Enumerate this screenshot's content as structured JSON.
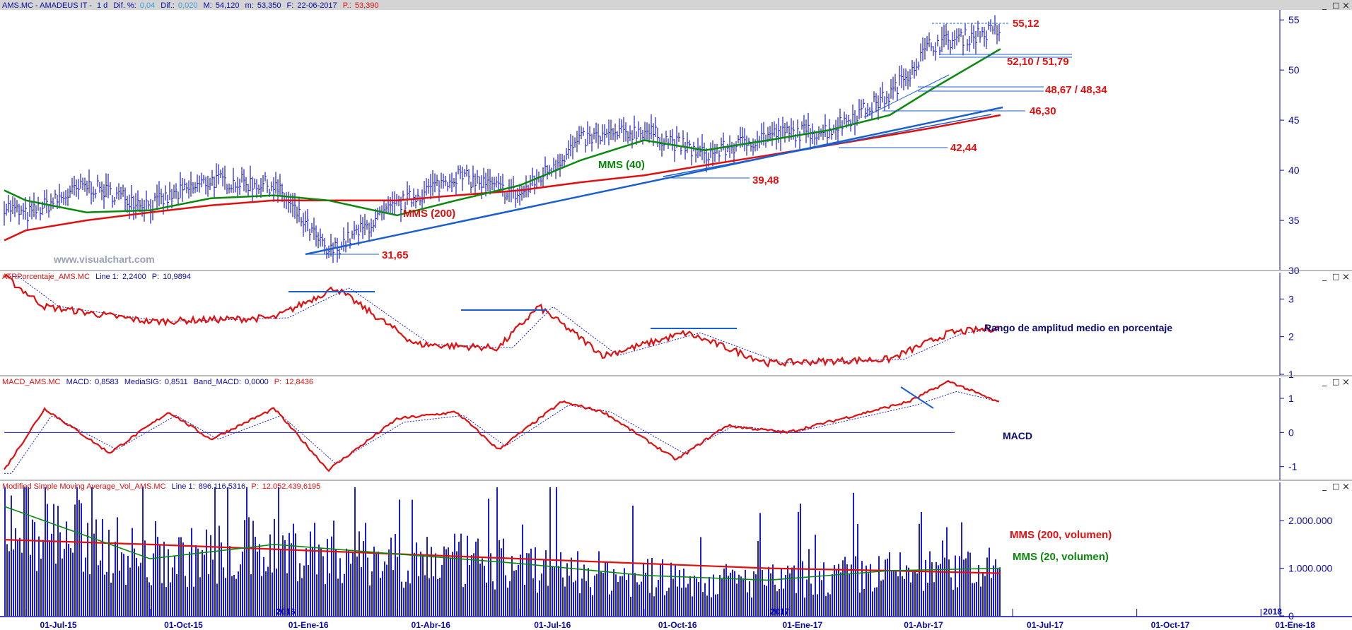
{
  "price_panel": {
    "header": {
      "symbol": "AMS.MC - AMADEUS IT -",
      "interval": "1 d",
      "dif_pct_label": "Dif. %:",
      "dif_pct": "0,04",
      "dif_label": "Dif.:",
      "dif": "0,020",
      "max_label": "M:",
      "max": "54,120",
      "min_label": "m:",
      "min": "53,350",
      "date_label": "F:",
      "date": "22-06-2017",
      "price_label": "P.:",
      "price": "53,390"
    },
    "watermark": "www.visualchart.com",
    "labels": {
      "mms40": "MMS (40)",
      "mms200": "MMS (200)"
    },
    "levels": [
      {
        "value": 55.12,
        "text": "55,12"
      },
      {
        "value": 52.1,
        "text": "52,10 / 51,79"
      },
      {
        "value": 48.67,
        "text": "48,67 / 48,34"
      },
      {
        "value": 46.3,
        "text": "46,30"
      },
      {
        "value": 42.44,
        "text": "42,44"
      },
      {
        "value": 39.48,
        "text": "39,48"
      },
      {
        "value": 31.65,
        "text": "31,65"
      }
    ],
    "yticks": [
      "55",
      "50",
      "45",
      "40",
      "35",
      "30"
    ]
  },
  "atr_panel": {
    "header": {
      "name": "ATRPorcentaje_AMS.MC",
      "line_label": "Line 1:",
      "line": "2,2400",
      "p_label": "P:",
      "p": "10,9894"
    },
    "description": "Rango de amplitud medio en porcentaje",
    "yticks": [
      "3",
      "2",
      "1"
    ]
  },
  "macd_panel": {
    "header": {
      "name": "MACD_AMS.MC",
      "macd_label": "MACD:",
      "macd": "0,8583",
      "sig_label": "MediaSIG:",
      "sig": "0,8511",
      "band_label": "Band_MACD:",
      "band": "0,0000",
      "p_label": "P:",
      "p": "12,8436"
    },
    "description": "MACD",
    "yticks": [
      "1",
      "0",
      "-1"
    ]
  },
  "volume_panel": {
    "header": {
      "name": "Modified Simple Moving Average_Vol_AMS.MC",
      "line_label": "Line 1:",
      "line": "896.116,5316",
      "p_label": "P:",
      "p": "12.052.439,6195"
    },
    "label_200": "MMS (200, volumen)",
    "label_20": "MMS (20, volumen)",
    "yticks": [
      "2.000.000",
      "1.000.000",
      "0"
    ]
  },
  "x_axis": {
    "dates": [
      "01-Jul-15",
      "01-Oct-15",
      "01-Ene-16",
      "01-Abr-16",
      "01-Jul-16",
      "01-Oct-16",
      "01-Ene-17",
      "01-Abr-17",
      "01-Jul-17",
      "01-Oct-17",
      "01-Ene-18"
    ],
    "year_markers": [
      "2016",
      "2017",
      "2018"
    ]
  },
  "window_controls": {
    "minimize": "_",
    "restore": "□",
    "close": "×"
  },
  "colors": {
    "price_bars": "#1c1cd6",
    "mms40": "#0a8a0a",
    "mms200": "#e01010",
    "trendline": "#1a5fd0",
    "annotation": "#e01010",
    "axis": "#0a0aa8",
    "header_bg": "#d4d4d4"
  },
  "chart_data": [
    {
      "type": "bar",
      "title": "AMS.MC - AMADEUS IT",
      "x": [
        "2015-06-15",
        "2015-07-01",
        "2015-08-15",
        "2015-10-01",
        "2015-11-15",
        "2016-01-01",
        "2016-02-10",
        "2016-04-01",
        "2016-05-15",
        "2016-07-01",
        "2016-08-15",
        "2016-10-01",
        "2016-11-15",
        "2017-01-01",
        "2017-02-15",
        "2017-04-01",
        "2017-05-01",
        "2017-06-22"
      ],
      "series": [
        {
          "name": "price",
          "values": [
            36.5,
            35.5,
            38.5,
            36.5,
            39.0,
            38.5,
            31.7,
            36.5,
            39.5,
            37.5,
            43.0,
            44.0,
            41.5,
            43.5,
            44.0,
            47.5,
            52.5,
            54.0
          ]
        },
        {
          "name": "MMS (40)",
          "values": [
            38.0,
            37.0,
            35.8,
            36.0,
            37.2,
            37.5,
            37.0,
            35.5,
            37.0,
            38.5,
            41.0,
            43.0,
            42.0,
            43.0,
            44.0,
            45.5,
            48.0,
            52.1
          ]
        },
        {
          "name": "MMS (200)",
          "values": [
            33.0,
            34.0,
            35.0,
            35.8,
            36.5,
            37.0,
            37.0,
            37.0,
            37.5,
            38.0,
            38.8,
            39.5,
            40.5,
            41.5,
            42.5,
            43.5,
            44.2,
            45.5
          ]
        }
      ],
      "ylim": [
        30,
        56
      ]
    },
    {
      "type": "line",
      "title": "ATRPorcentaje_AMS.MC",
      "x": [
        "2015-06-15",
        "2015-07-15",
        "2015-10-01",
        "2016-01-01",
        "2016-02-15",
        "2016-04-15",
        "2016-06-15",
        "2016-07-15",
        "2016-09-01",
        "2016-11-01",
        "2017-01-01",
        "2017-04-01",
        "2017-05-15",
        "2017-06-22"
      ],
      "series": [
        {
          "name": "Line 1",
          "values": [
            3.6,
            2.8,
            2.4,
            2.5,
            3.3,
            1.8,
            1.7,
            2.8,
            1.5,
            2.1,
            1.3,
            1.4,
            2.1,
            2.24
          ]
        }
      ],
      "ylim": [
        1,
        3.7
      ]
    },
    {
      "type": "line",
      "title": "MACD_AMS.MC",
      "x": [
        "2015-06-15",
        "2015-07-15",
        "2015-09-01",
        "2015-10-15",
        "2015-11-15",
        "2016-01-01",
        "2016-02-10",
        "2016-04-01",
        "2016-05-15",
        "2016-06-15",
        "2016-08-01",
        "2016-09-01",
        "2016-10-25",
        "2016-12-01",
        "2017-01-15",
        "2017-04-15",
        "2017-05-15",
        "2017-06-22"
      ],
      "series": [
        {
          "name": "MACD",
          "values": [
            -1.1,
            0.7,
            -0.6,
            0.6,
            -0.2,
            0.7,
            -1.1,
            0.4,
            0.6,
            -0.5,
            0.9,
            0.6,
            -0.8,
            0.2,
            0.0,
            0.9,
            1.5,
            0.86
          ]
        },
        {
          "name": "MediaSIG",
          "values": [
            -1.2,
            0.5,
            -0.5,
            0.5,
            -0.2,
            0.5,
            -0.9,
            0.3,
            0.5,
            -0.4,
            0.8,
            0.6,
            -0.6,
            0.2,
            0.0,
            0.8,
            1.2,
            0.85
          ]
        }
      ],
      "ylim": [
        -1.4,
        1.6
      ]
    },
    {
      "type": "bar",
      "title": "Modified Simple Moving Average_Vol_AMS.MC",
      "x": [
        "2015-06-15",
        "2015-10-01",
        "2016-01-01",
        "2016-04-01",
        "2016-07-01",
        "2016-10-01",
        "2017-01-01",
        "2017-04-01",
        "2017-06-22"
      ],
      "series": [
        {
          "name": "MMS (200, volumen)",
          "values": [
            1600000,
            1500000,
            1400000,
            1300000,
            1200000,
            1100000,
            1000000,
            950000,
            896117
          ]
        },
        {
          "name": "MMS (20, volumen)",
          "values": [
            2300000,
            1200000,
            1500000,
            1300000,
            1100000,
            850000,
            750000,
            950000,
            1000000
          ]
        }
      ],
      "ylim": [
        0,
        2700000
      ]
    }
  ]
}
